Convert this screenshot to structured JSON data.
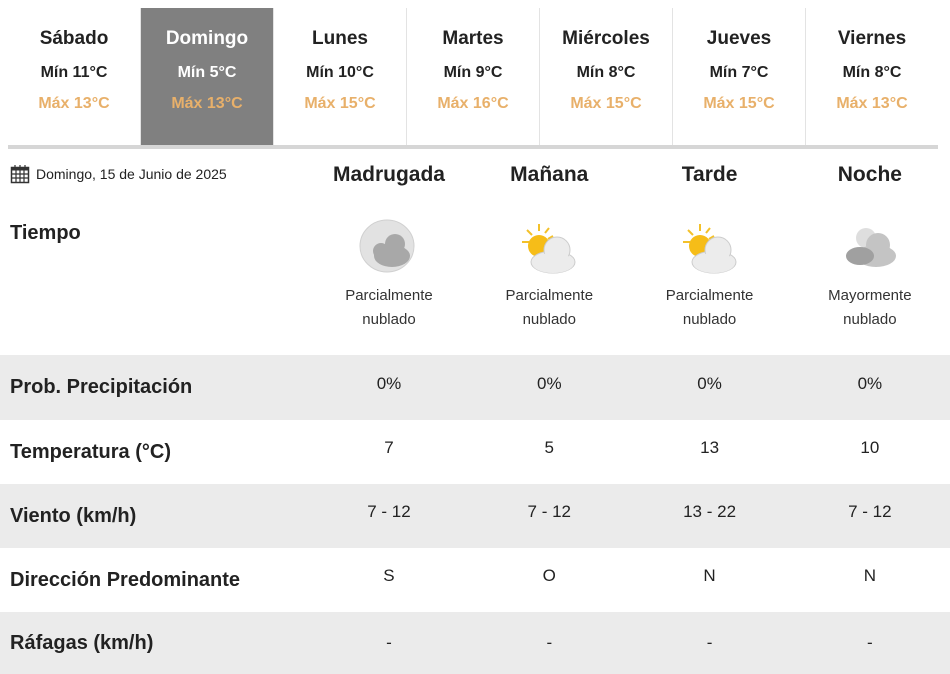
{
  "days": [
    {
      "name": "Sábado",
      "min": "Mín 11°C",
      "max": "Máx 13°C",
      "active": false
    },
    {
      "name": "Domingo",
      "min": "Mín 5°C",
      "max": "Máx 13°C",
      "active": true
    },
    {
      "name": "Lunes",
      "min": "Mín 10°C",
      "max": "Máx 15°C",
      "active": false
    },
    {
      "name": "Martes",
      "min": "Mín 9°C",
      "max": "Máx 16°C",
      "active": false
    },
    {
      "name": "Miércoles",
      "min": "Mín 8°C",
      "max": "Máx 15°C",
      "active": false
    },
    {
      "name": "Jueves",
      "min": "Mín 7°C",
      "max": "Máx 15°C",
      "active": false
    },
    {
      "name": "Viernes",
      "min": "Mín 8°C",
      "max": "Máx 13°C",
      "active": false
    }
  ],
  "date": "Domingo, 15 de Junio de 2025",
  "periods": [
    "Madrugada",
    "Mañana",
    "Tarde",
    "Noche"
  ],
  "weather": {
    "label": "Tiempo",
    "items": [
      {
        "icon": "moon-cloud-icon",
        "line1": "Parcialmente",
        "line2": "nublado"
      },
      {
        "icon": "sun-cloud-icon",
        "line1": "Parcialmente",
        "line2": "nublado"
      },
      {
        "icon": "sun-cloud-icon",
        "line1": "Parcialmente",
        "line2": "nublado"
      },
      {
        "icon": "moon-clouds-icon",
        "line1": "Mayormente",
        "line2": "nublado"
      }
    ]
  },
  "rows": [
    {
      "label": "Prob. Precipitación",
      "values": [
        "0%",
        "0%",
        "0%",
        "0%"
      ]
    },
    {
      "label": "Temperatura (°C)",
      "values": [
        "7",
        "5",
        "13",
        "10"
      ]
    },
    {
      "label": "Viento (km/h)",
      "values": [
        "7 - 12",
        "7 - 12",
        "13 - 22",
        "7 - 12"
      ]
    },
    {
      "label": "Dirección Predominante",
      "values": [
        "S",
        "O",
        "N",
        "N"
      ]
    },
    {
      "label": "Ráfagas (km/h)",
      "values": [
        "-",
        "-",
        "-",
        "-"
      ]
    }
  ],
  "colors": {
    "active_tab": "#808080",
    "max_temp": "#e8b06a",
    "stripe": "#ebebeb"
  }
}
